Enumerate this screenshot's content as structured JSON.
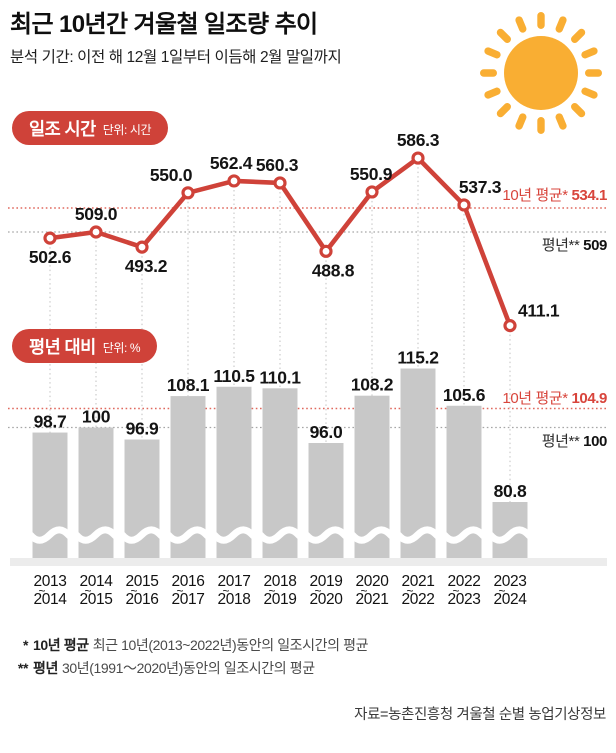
{
  "page": {
    "title": "최근 10년간 겨울철 일조량 추이",
    "subtitle": "분석 기간: 이전 해 12월 1일부터 이듬해 2월 말일까지"
  },
  "colors": {
    "accent_red": "#cf4239",
    "ref_line_red": "#e0695e",
    "ref_text_red": "#d8453c",
    "bar_gray": "#c8c8c8",
    "grid_gray": "#c2c2c2",
    "ref_line_gray": "#a6a6a6",
    "baseline_gray": "#ececec",
    "sun_orange": "#f9ae33",
    "text_dark": "#141414",
    "label_gray": "#2e2e2e",
    "white": "#ffffff"
  },
  "chart_data": [
    {
      "type": "line",
      "title": "일조 시간",
      "unit": "단위: 시간",
      "categories": [
        "2013~2014",
        "2014~2015",
        "2015~2016",
        "2016~2017",
        "2017~2018",
        "2018~2019",
        "2019~2020",
        "2020~2021",
        "2021~2022",
        "2022~2023",
        "2023~2024"
      ],
      "values": [
        502.6,
        509.0,
        493.2,
        550.0,
        562.4,
        560.3,
        488.8,
        550.9,
        586.3,
        537.3,
        411.1
      ],
      "labels": [
        "502.6",
        "509.0",
        "493.2",
        "550.0",
        "562.4",
        "560.3",
        "488.8",
        "550.9",
        "586.3",
        "537.3",
        "411.1"
      ],
      "label_placement": [
        "below",
        "above",
        "below",
        "above",
        "above",
        "above",
        "below",
        "above",
        "above",
        "above",
        "right"
      ],
      "ref_lines": [
        {
          "name": "10년 평균*",
          "value": 534.1,
          "display": "534.1",
          "style": "red"
        },
        {
          "name": "평년**",
          "value": 509,
          "display": "509",
          "style": "gray"
        }
      ]
    },
    {
      "type": "bar",
      "title": "평년 대비",
      "unit": "단위: %",
      "categories": [
        "2013~2014",
        "2014~2015",
        "2015~2016",
        "2016~2017",
        "2017~2018",
        "2018~2019",
        "2019~2020",
        "2020~2021",
        "2021~2022",
        "2022~2023",
        "2023~2024"
      ],
      "values": [
        98.7,
        100,
        96.9,
        108.1,
        110.5,
        110.1,
        96.0,
        108.2,
        115.2,
        105.6,
        80.8
      ],
      "labels": [
        "98.7",
        "100",
        "96.9",
        "108.1",
        "110.5",
        "110.1",
        "96.0",
        "108.2",
        "115.2",
        "105.6",
        "80.8"
      ],
      "broken_axis": true,
      "ref_lines": [
        {
          "name": "10년 평균*",
          "value": 104.9,
          "display": "104.9",
          "style": "red"
        },
        {
          "name": "평년**",
          "value": 100,
          "display": "100",
          "style": "gray"
        }
      ]
    }
  ],
  "x_axis": {
    "separator": "~"
  },
  "footnotes": [
    {
      "marker": "*",
      "term": "10년 평균",
      "rest": "최근 10년(2013~2022년)동안의 일조시간의 평균"
    },
    {
      "marker": "**",
      "term": "평년",
      "rest": "30년(1991〜2020년)동안의 일조시간의 평균"
    }
  ],
  "source": "자료=농촌진흥청 겨울철 순별 농업기상정보"
}
